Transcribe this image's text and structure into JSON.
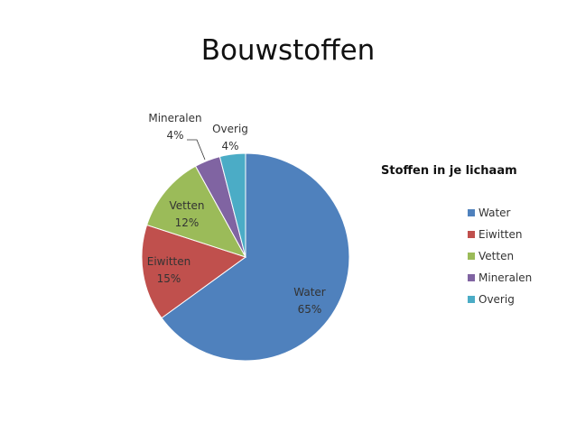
{
  "slide": {
    "title": "Bouwstoffen"
  },
  "chart_data": {
    "type": "pie",
    "title": "",
    "legend_title": "Stoffen in je lichaam",
    "legend_position": "right",
    "slices": [
      {
        "label": "Water",
        "value": 65,
        "display": "65%",
        "color": "#4f81bd"
      },
      {
        "label": "Eiwitten",
        "value": 15,
        "display": "15%",
        "color": "#c0504d"
      },
      {
        "label": "Vetten",
        "value": 12,
        "display": "12%",
        "color": "#9bbb59"
      },
      {
        "label": "Mineralen",
        "value": 4,
        "display": "4%",
        "color": "#8064a2"
      },
      {
        "label": "Overig",
        "value": 4,
        "display": "4%",
        "color": "#4bacc6"
      }
    ]
  }
}
